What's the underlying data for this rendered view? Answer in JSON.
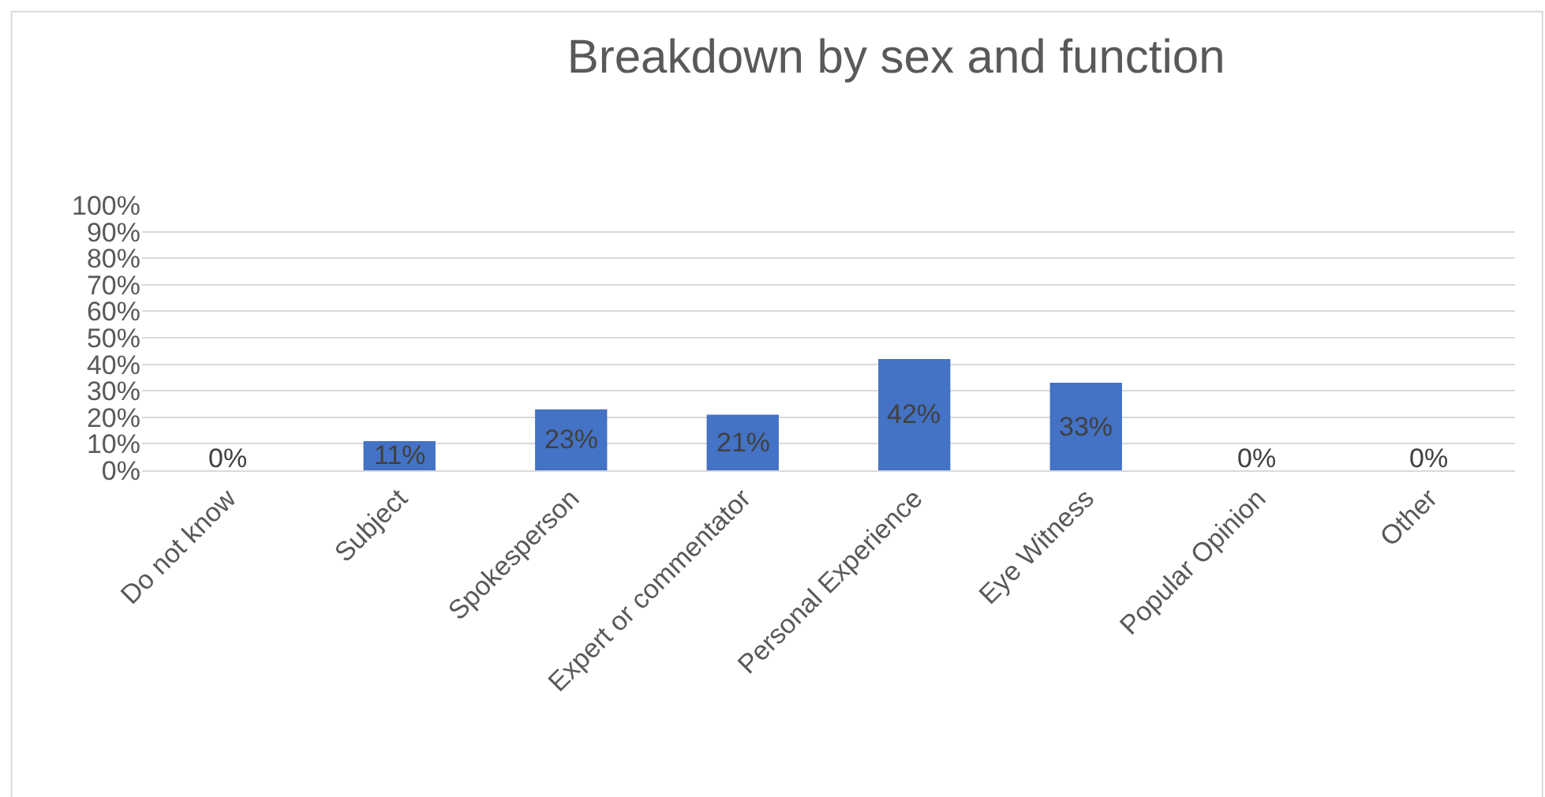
{
  "chart_data": {
    "type": "bar",
    "title": "Breakdown by sex and function",
    "categories": [
      "Do not know",
      "Subject",
      "Spokesperson",
      "Expert or commentator",
      "Personal Experience",
      "Eye Witness",
      "Popular Opinion",
      "Other"
    ],
    "values": [
      0,
      11,
      23,
      21,
      42,
      33,
      0,
      0
    ],
    "value_labels": [
      "0%",
      "11%",
      "23%",
      "21%",
      "42%",
      "33%",
      "0%",
      "0%"
    ],
    "color": "#4472c4",
    "ylim": [
      0,
      100
    ],
    "yticks": [
      {
        "value": 0,
        "label": "0%"
      },
      {
        "value": 10,
        "label": "10%"
      },
      {
        "value": 20,
        "label": "20%"
      },
      {
        "value": 30,
        "label": "30%"
      },
      {
        "value": 40,
        "label": "40%"
      },
      {
        "value": 50,
        "label": "50%"
      },
      {
        "value": 60,
        "label": "60%"
      },
      {
        "value": 70,
        "label": "70%"
      },
      {
        "value": 80,
        "label": "80%"
      },
      {
        "value": 90,
        "label": "90%"
      },
      {
        "value": 100,
        "label": "100%"
      }
    ],
    "grid": "y",
    "legend": false
  }
}
